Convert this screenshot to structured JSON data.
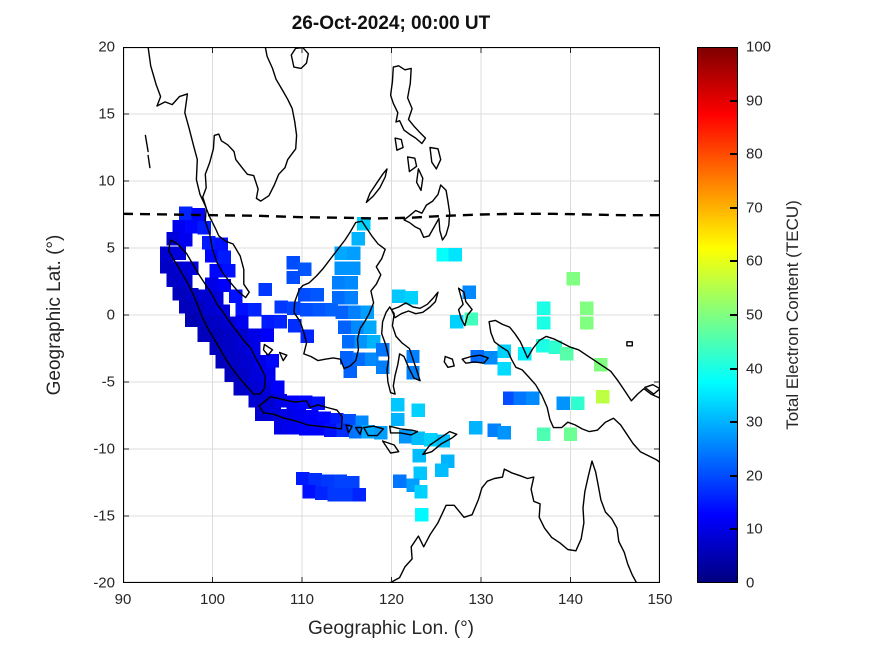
{
  "figure": {
    "title": "26-Oct-2024; 00:00 UT",
    "background": "#ffffff"
  },
  "axes": {
    "xlabel": "Geographic Lon. (°)",
    "ylabel": "Geographic Lat. (°)",
    "xlim": [
      90,
      150
    ],
    "ylim": [
      -20,
      20
    ],
    "xticks": [
      90,
      100,
      110,
      120,
      130,
      140,
      150
    ],
    "yticks": [
      20,
      15,
      10,
      5,
      0,
      -5,
      -10,
      -15,
      -20
    ],
    "grid": true,
    "grid_color": "#dcdcdc",
    "tick_text_color": "#262626",
    "coastline_color": "#000000"
  },
  "colorbar": {
    "label": "Total Electron Content (TECU)",
    "min": 0,
    "max": 100,
    "ticks": [
      0,
      10,
      20,
      30,
      40,
      50,
      60,
      70,
      80,
      90,
      100
    ],
    "colormap": "jet"
  },
  "equator_line": {
    "style": "dashed",
    "color": "#000000",
    "points": [
      [
        90,
        7.55
      ],
      [
        95,
        7.5
      ],
      [
        100,
        7.45
      ],
      [
        105,
        7.4
      ],
      [
        110,
        7.3
      ],
      [
        115,
        7.25
      ],
      [
        118,
        7.2
      ],
      [
        122,
        7.25
      ],
      [
        126,
        7.4
      ],
      [
        130,
        7.5
      ],
      [
        134,
        7.55
      ],
      [
        138,
        7.55
      ],
      [
        142,
        7.5
      ],
      [
        146,
        7.45
      ],
      [
        150,
        7.45
      ]
    ]
  },
  "chart_data": {
    "type": "heatmap",
    "title": "26-Oct-2024; 00:00 UT",
    "xlabel": "Geographic Lon. (°)",
    "ylabel": "Geographic Lat. (°)",
    "value_label": "Total Electron Content (TECU)",
    "xlim": [
      90,
      150
    ],
    "ylim": [
      -20,
      20
    ],
    "vlim": [
      0,
      100
    ],
    "cell_size_deg": {
      "lon": 1.5,
      "lat": 1.0
    },
    "points": [
      [
        97,
        7.6,
        16
      ],
      [
        98.4,
        7.5,
        13
      ],
      [
        96.3,
        6.6,
        11
      ],
      [
        97.7,
        6.6,
        13
      ],
      [
        99.1,
        6.5,
        15
      ],
      [
        95.6,
        5.7,
        9
      ],
      [
        97,
        5.6,
        11
      ],
      [
        99.6,
        5.4,
        15
      ],
      [
        101,
        5.3,
        14
      ],
      [
        94.9,
        4.6,
        8
      ],
      [
        96.3,
        4.6,
        9
      ],
      [
        99.9,
        4.4,
        13
      ],
      [
        101.3,
        4.3,
        15
      ],
      [
        94.9,
        3.6,
        7
      ],
      [
        96.3,
        3.5,
        8
      ],
      [
        97.7,
        3.5,
        9
      ],
      [
        100.4,
        3.3,
        13
      ],
      [
        101.8,
        3.3,
        14
      ],
      [
        109,
        3.9,
        20
      ],
      [
        110.3,
        3.4,
        21
      ],
      [
        109,
        2.8,
        20
      ],
      [
        95.6,
        2.6,
        7
      ],
      [
        97,
        2.5,
        8
      ],
      [
        99.9,
        2.3,
        10
      ],
      [
        101.3,
        2.2,
        12
      ],
      [
        105.9,
        1.9,
        18
      ],
      [
        96.3,
        1.6,
        6
      ],
      [
        97.7,
        1.5,
        7
      ],
      [
        99.1,
        1.4,
        8
      ],
      [
        100.5,
        1.3,
        9
      ],
      [
        102.6,
        1.4,
        14
      ],
      [
        110.3,
        1.5,
        20
      ],
      [
        111.7,
        1.5,
        21
      ],
      [
        97,
        0.6,
        6
      ],
      [
        98.4,
        0.5,
        6
      ],
      [
        99.8,
        0.4,
        8
      ],
      [
        101.2,
        0.3,
        9
      ],
      [
        103.3,
        0.4,
        14
      ],
      [
        104.7,
        0.4,
        16
      ],
      [
        107.7,
        0.6,
        18
      ],
      [
        109.1,
        0.5,
        19
      ],
      [
        110.5,
        0.4,
        20
      ],
      [
        111.9,
        0.4,
        21
      ],
      [
        113.3,
        0.4,
        22
      ],
      [
        97.7,
        -0.4,
        5
      ],
      [
        99.1,
        -0.5,
        6
      ],
      [
        100.5,
        -0.5,
        7
      ],
      [
        101.9,
        -0.6,
        8
      ],
      [
        103.3,
        -0.5,
        11
      ],
      [
        106.2,
        -0.5,
        15
      ],
      [
        107.6,
        -0.5,
        16
      ],
      [
        109.2,
        -0.8,
        17
      ],
      [
        99.1,
        -1.5,
        6
      ],
      [
        100.5,
        -1.5,
        6
      ],
      [
        101.9,
        -1.6,
        7
      ],
      [
        103.3,
        -1.5,
        8
      ],
      [
        104.7,
        -1.5,
        10
      ],
      [
        106.1,
        -1.5,
        12
      ],
      [
        110.6,
        -1.6,
        16
      ],
      [
        100.4,
        -2.5,
        6
      ],
      [
        101.8,
        -2.5,
        7
      ],
      [
        103.2,
        -2.5,
        8
      ],
      [
        104.6,
        -2.5,
        10
      ],
      [
        101.1,
        -3.5,
        6
      ],
      [
        102.5,
        -3.5,
        7
      ],
      [
        103.9,
        -3.5,
        8
      ],
      [
        105.3,
        -3.5,
        10
      ],
      [
        106.7,
        -3.4,
        13
      ],
      [
        102.1,
        -4.5,
        6
      ],
      [
        103.5,
        -4.5,
        7
      ],
      [
        104.9,
        -4.5,
        9
      ],
      [
        106.3,
        -4.4,
        11
      ],
      [
        103.1,
        -5.5,
        7
      ],
      [
        104.5,
        -5.5,
        8
      ],
      [
        105.9,
        -5.4,
        9
      ],
      [
        107.3,
        -5.4,
        12
      ],
      [
        104.8,
        -6.4,
        8
      ],
      [
        106.2,
        -6.4,
        8
      ],
      [
        107.6,
        -6.4,
        10
      ],
      [
        109,
        -6.5,
        12
      ],
      [
        110.4,
        -6.5,
        13
      ],
      [
        111.8,
        -6.6,
        14
      ],
      [
        105.5,
        -7.4,
        8
      ],
      [
        106.9,
        -7.4,
        9
      ],
      [
        108.3,
        -7.5,
        10
      ],
      [
        109.7,
        -7.5,
        11
      ],
      [
        111.1,
        -7.6,
        12
      ],
      [
        112.5,
        -7.7,
        13
      ],
      [
        113.9,
        -7.8,
        15
      ],
      [
        115.3,
        -7.9,
        20
      ],
      [
        116.7,
        -8,
        26
      ],
      [
        107.6,
        -8.4,
        10
      ],
      [
        109,
        -8.4,
        11
      ],
      [
        110.4,
        -8.5,
        12
      ],
      [
        111.8,
        -8.5,
        12
      ],
      [
        113.2,
        -8.6,
        14
      ],
      [
        114.6,
        -8.6,
        17
      ],
      [
        116,
        -8.7,
        24
      ],
      [
        117.4,
        -8.7,
        29
      ],
      [
        118.8,
        -8.8,
        28
      ],
      [
        121.6,
        -9.1,
        27
      ],
      [
        123,
        -9.2,
        31
      ],
      [
        124.4,
        -9.3,
        33
      ],
      [
        125.8,
        -9.4,
        31
      ],
      [
        123.1,
        -10.5,
        31
      ],
      [
        126.3,
        -10.9,
        30
      ],
      [
        123.2,
        -11.8,
        32
      ],
      [
        125.6,
        -11.6,
        31
      ],
      [
        120.9,
        -12.4,
        24
      ],
      [
        122.4,
        -12.7,
        28
      ],
      [
        123.3,
        -13.2,
        33
      ],
      [
        123.4,
        -14.9,
        37
      ],
      [
        110.1,
        -12.2,
        15
      ],
      [
        111.5,
        -12.3,
        17
      ],
      [
        112.9,
        -12.4,
        18
      ],
      [
        114.3,
        -12.4,
        19
      ],
      [
        115.7,
        -12.5,
        19
      ],
      [
        110.8,
        -13.2,
        14
      ],
      [
        112.2,
        -13.3,
        16
      ],
      [
        113.6,
        -13.4,
        18
      ],
      [
        115,
        -13.4,
        18
      ],
      [
        116.4,
        -13.4,
        16
      ],
      [
        116.9,
        6.8,
        33
      ],
      [
        116.3,
        5.7,
        30
      ],
      [
        114.4,
        4.6,
        29
      ],
      [
        115.8,
        4.6,
        28
      ],
      [
        114.4,
        3.5,
        27
      ],
      [
        115.8,
        3.5,
        27
      ],
      [
        114.1,
        2.4,
        25
      ],
      [
        115.5,
        2.4,
        26
      ],
      [
        114.1,
        1.3,
        23
      ],
      [
        115.5,
        1.3,
        25
      ],
      [
        114.5,
        0.2,
        22
      ],
      [
        115.9,
        0.2,
        25
      ],
      [
        117.3,
        0.2,
        28
      ],
      [
        114.8,
        -0.9,
        22
      ],
      [
        116.2,
        -0.9,
        26
      ],
      [
        117.6,
        -0.9,
        29
      ],
      [
        115.2,
        -2,
        23
      ],
      [
        116.6,
        -2,
        27
      ],
      [
        118,
        -2,
        30
      ],
      [
        115,
        -3.2,
        22
      ],
      [
        116.4,
        -3.3,
        23
      ],
      [
        117.8,
        -3.3,
        26
      ],
      [
        115.4,
        -4.2,
        22
      ],
      [
        119,
        -2.6,
        24
      ],
      [
        119,
        -3.9,
        25
      ],
      [
        120.8,
        1.4,
        32
      ],
      [
        122.2,
        1.3,
        33
      ],
      [
        122.4,
        -3.1,
        25
      ],
      [
        122.4,
        -4.3,
        25
      ],
      [
        120.7,
        -6.7,
        32
      ],
      [
        120.7,
        -7.8,
        30
      ],
      [
        123,
        -7.1,
        33
      ],
      [
        125.8,
        4.5,
        38
      ],
      [
        127.1,
        4.5,
        35
      ],
      [
        128.7,
        1.7,
        26
      ],
      [
        127.3,
        -0.5,
        33
      ],
      [
        128.9,
        -0.3,
        44
      ],
      [
        129.6,
        -3.1,
        23
      ],
      [
        131.1,
        -3.2,
        26
      ],
      [
        132.6,
        -2.7,
        33
      ],
      [
        134.9,
        -2.9,
        36
      ],
      [
        132.6,
        -4,
        34
      ],
      [
        140.3,
        2.7,
        50
      ],
      [
        137,
        0.5,
        40
      ],
      [
        137,
        -0.6,
        40
      ],
      [
        141.8,
        0.5,
        50
      ],
      [
        141.8,
        -0.6,
        50
      ],
      [
        136.9,
        -2.3,
        40
      ],
      [
        138.3,
        -2.4,
        42
      ],
      [
        139.6,
        -2.9,
        46
      ],
      [
        143.4,
        -3.7,
        50
      ],
      [
        133.2,
        -6.2,
        20
      ],
      [
        134.4,
        -6.2,
        24
      ],
      [
        135.8,
        -6.2,
        26
      ],
      [
        139.2,
        -6.6,
        27
      ],
      [
        140.8,
        -6.6,
        42
      ],
      [
        143.6,
        -6.1,
        56
      ],
      [
        129.4,
        -8.4,
        30
      ],
      [
        131.5,
        -8.6,
        25
      ],
      [
        132.6,
        -8.8,
        27
      ],
      [
        137,
        -8.9,
        45
      ],
      [
        140,
        -8.9,
        48
      ]
    ]
  }
}
